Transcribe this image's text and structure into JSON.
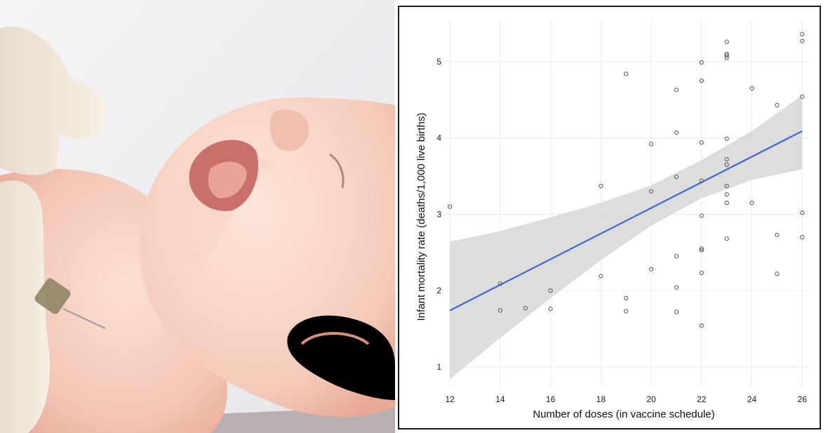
{
  "photo": {
    "subject": "baby receiving injection",
    "colors": {
      "background": "#eeeef0",
      "skin": "#f6cfc0",
      "glove": "#efe6d9",
      "mouth": "#d98a84"
    }
  },
  "chart_data": {
    "type": "scatter",
    "title": "",
    "xlabel": "Number of doses (in vaccine schedule)",
    "ylabel": "Infant mortality rate (deaths/1,000 live births)",
    "xlim": [
      11.8,
      26.3
    ],
    "ylim": [
      0.75,
      5.55
    ],
    "xticks": [
      12,
      14,
      16,
      18,
      20,
      22,
      24,
      26
    ],
    "yticks": [
      1,
      2,
      3,
      4,
      5
    ],
    "grid": true,
    "legend": "none",
    "colors": {
      "points": "#555555",
      "fit_line": "#3a66e0",
      "confidence_band": "#d7d7d7"
    },
    "points": [
      {
        "x": 12,
        "y": 3.1
      },
      {
        "x": 14,
        "y": 2.09
      },
      {
        "x": 14,
        "y": 1.74
      },
      {
        "x": 15,
        "y": 1.77
      },
      {
        "x": 16,
        "y": 2.0
      },
      {
        "x": 16,
        "y": 1.76
      },
      {
        "x": 18,
        "y": 3.37
      },
      {
        "x": 18,
        "y": 2.19
      },
      {
        "x": 19,
        "y": 4.84
      },
      {
        "x": 19,
        "y": 1.9
      },
      {
        "x": 19,
        "y": 1.73
      },
      {
        "x": 20,
        "y": 3.92
      },
      {
        "x": 20,
        "y": 3.3
      },
      {
        "x": 20,
        "y": 2.28
      },
      {
        "x": 21,
        "y": 4.63
      },
      {
        "x": 21,
        "y": 4.07
      },
      {
        "x": 21,
        "y": 3.49
      },
      {
        "x": 21,
        "y": 2.45
      },
      {
        "x": 21,
        "y": 2.04
      },
      {
        "x": 21,
        "y": 1.72
      },
      {
        "x": 22,
        "y": 4.99
      },
      {
        "x": 22,
        "y": 4.75
      },
      {
        "x": 22,
        "y": 3.94
      },
      {
        "x": 22,
        "y": 3.44
      },
      {
        "x": 22,
        "y": 2.98
      },
      {
        "x": 22,
        "y": 2.55
      },
      {
        "x": 22,
        "y": 2.53
      },
      {
        "x": 22,
        "y": 2.23
      },
      {
        "x": 22,
        "y": 1.54
      },
      {
        "x": 23,
        "y": 5.26
      },
      {
        "x": 23,
        "y": 5.1
      },
      {
        "x": 23,
        "y": 5.08
      },
      {
        "x": 23,
        "y": 5.05
      },
      {
        "x": 23,
        "y": 3.99
      },
      {
        "x": 23,
        "y": 3.72
      },
      {
        "x": 23,
        "y": 3.65
      },
      {
        "x": 23,
        "y": 3.37
      },
      {
        "x": 23,
        "y": 3.26
      },
      {
        "x": 23,
        "y": 3.15
      },
      {
        "x": 23,
        "y": 2.68
      },
      {
        "x": 24,
        "y": 4.65
      },
      {
        "x": 24,
        "y": 3.15
      },
      {
        "x": 25,
        "y": 4.43
      },
      {
        "x": 25,
        "y": 2.73
      },
      {
        "x": 25,
        "y": 2.22
      },
      {
        "x": 26,
        "y": 5.36
      },
      {
        "x": 26,
        "y": 5.27
      },
      {
        "x": 26,
        "y": 4.54
      },
      {
        "x": 26,
        "y": 3.02
      },
      {
        "x": 26,
        "y": 2.7
      }
    ],
    "fit_line": {
      "x": [
        12,
        26
      ],
      "y": [
        1.74,
        4.09
      ]
    },
    "confidence_band": {
      "x": [
        12,
        14,
        16,
        18,
        20,
        22,
        24,
        26
      ],
      "lower": [
        0.84,
        1.38,
        1.9,
        2.4,
        2.85,
        3.21,
        3.45,
        3.59
      ],
      "upper": [
        2.64,
        2.78,
        2.96,
        3.15,
        3.38,
        3.71,
        4.09,
        4.56
      ]
    }
  }
}
